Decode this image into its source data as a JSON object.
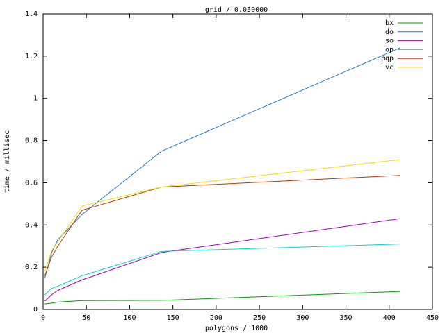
{
  "chart_data": {
    "type": "line",
    "title": "grid / 0.030000",
    "x_label": "polygons / 1000",
    "y_label": "time / millisec",
    "x": [
      2,
      10,
      17,
      45,
      137,
      413
    ],
    "series": [
      {
        "name": "bx",
        "color": "#00a000",
        "values": [
          0.026,
          0.03,
          0.035,
          0.042,
          0.043,
          0.085
        ]
      },
      {
        "name": "do",
        "color": "#1e78d2",
        "values": [
          0.15,
          0.27,
          0.33,
          0.45,
          0.75,
          1.24
        ]
      },
      {
        "name": "so",
        "color": "#a000b4",
        "values": [
          0.04,
          0.07,
          0.09,
          0.14,
          0.27,
          0.43
        ]
      },
      {
        "name": "op",
        "color": "#00d2d2",
        "values": [
          0.07,
          0.1,
          0.11,
          0.16,
          0.275,
          0.31
        ]
      },
      {
        "name": "pqp",
        "color": "#b43c00",
        "values": [
          0.16,
          0.25,
          0.3,
          0.47,
          0.58,
          0.635
        ]
      },
      {
        "name": "vc",
        "color": "#f0dc00",
        "values": [
          0.18,
          0.28,
          0.32,
          0.49,
          0.58,
          0.71
        ]
      }
    ],
    "xlim": [
      0,
      450
    ],
    "xticks": [
      0,
      50,
      100,
      150,
      200,
      250,
      300,
      350,
      400,
      450
    ],
    "ylim": [
      0,
      1.4
    ],
    "yticks": [
      0,
      0.2,
      0.4,
      0.6,
      0.8,
      1,
      1.2,
      1.4
    ],
    "legend": "top-right",
    "grid": false
  }
}
